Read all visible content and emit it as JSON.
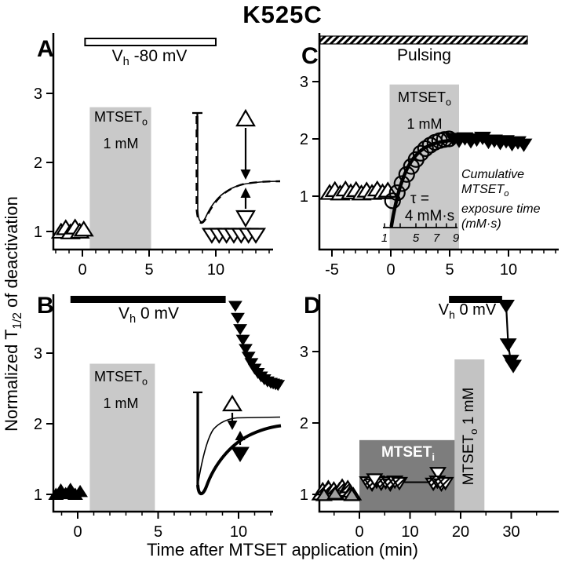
{
  "title": "K525C",
  "y_axis_label": {
    "pre": "Normalized T",
    "sub": "1/2",
    "post": " of deactivation"
  },
  "x_axis_label": "Time after MTSET application (min)",
  "colors": {
    "shade_light": "#c9c9c9",
    "shade_dark": "#7d7d7d",
    "shade_d_light": "#c3c3c3",
    "ink": "#000000"
  },
  "chart_data": [
    {
      "panel_label": "A",
      "type": "scatter",
      "xlim": [
        -2.2,
        14.3
      ],
      "ylim": [
        0.74,
        3.87
      ],
      "x_ticks": {
        "values": [
          0,
          5,
          10
        ],
        "labels": [
          "0",
          "5",
          "10"
        ]
      },
      "y_ticks": {
        "values": [
          1,
          2,
          3
        ],
        "labels": [
          "1",
          "2",
          "3"
        ]
      },
      "top_bar": {
        "style": "open",
        "x_range_min": [
          0.2,
          10
        ],
        "label": {
          "pre": "V",
          "sub": "h",
          "post": " -80 mV"
        }
      },
      "shade_boxes": [
        {
          "x0": 0.55,
          "x1": 5.15,
          "y_top": 2.8,
          "color": "light",
          "label_line1": {
            "pre": "MTSET",
            "sub": "o"
          },
          "label_line2": "1 mM"
        }
      ],
      "series": [
        {
          "name": "before MTSET, open up-triangles",
          "marker": "triangle-up",
          "fill": "open",
          "x": [
            -1.6,
            -1.25,
            -0.9,
            -0.55,
            -0.2,
            0.1
          ],
          "y": [
            1.0,
            1.05,
            0.99,
            1.06,
            1.0,
            1.03
          ]
        },
        {
          "name": "after MTSET washout, open down-triangles",
          "marker": "triangle-down",
          "fill": "open",
          "x": [
            9.7,
            10.25,
            10.8,
            11.35,
            11.9,
            12.45,
            13.0
          ],
          "y": [
            0.95,
            0.95,
            0.95,
            0.95,
            0.95,
            0.95,
            0.95
          ]
        }
      ]
    },
    {
      "panel_label": "B",
      "type": "scatter",
      "xlim": [
        -1.5,
        12.2
      ],
      "ylim": [
        0.76,
        3.84
      ],
      "x_ticks": {
        "values": [
          0,
          5,
          10
        ],
        "labels": [
          "0",
          "5",
          "10"
        ]
      },
      "y_ticks": {
        "values": [
          1,
          2,
          3
        ],
        "labels": [
          "1",
          "2",
          "3"
        ]
      },
      "top_bar": {
        "style": "solid",
        "x_range_min": [
          -0.45,
          9.2
        ],
        "label": {
          "pre": "V",
          "sub": "h",
          "post": " 0 mV"
        }
      },
      "shade_boxes": [
        {
          "x0": 0.75,
          "x1": 4.8,
          "y_top": 2.85,
          "color": "light",
          "label_line1": {
            "pre": "MTSET",
            "sub": "o"
          },
          "label_line2": "1 mM"
        }
      ],
      "series": [
        {
          "name": "before MTSET, filled up-triangles",
          "marker": "triangle-up",
          "fill": "filled",
          "x": [
            -1.35,
            -1.05,
            -0.75,
            -0.45,
            -0.15,
            0.15
          ],
          "y": [
            1.0,
            1.06,
            1.01,
            1.07,
            1.0,
            1.04
          ]
        },
        {
          "name": "after MTSET, filled down-triangles relaxing",
          "marker": "triangle-down",
          "fill": "filled",
          "x": [
            9.8,
            9.95,
            10.1,
            10.27,
            10.44,
            10.62,
            10.8,
            11.0,
            11.2,
            11.4,
            11.6,
            11.8,
            12.0,
            12.15,
            12.3,
            12.45
          ],
          "y": [
            3.67,
            3.5,
            3.34,
            3.19,
            3.06,
            2.95,
            2.86,
            2.78,
            2.72,
            2.67,
            2.63,
            2.6,
            2.58,
            2.57,
            2.56,
            2.55
          ]
        }
      ]
    },
    {
      "panel_label": "C",
      "type": "scatter",
      "xlim": [
        -6.1,
        14.3
      ],
      "ylim": [
        0.07,
        3.85
      ],
      "x_ticks": {
        "values": [
          -5,
          0,
          5,
          10
        ],
        "labels": [
          "-5",
          "0",
          "5",
          "10"
        ]
      },
      "y_ticks": {
        "values": [
          1,
          2,
          3
        ],
        "labels": [
          "1",
          "2",
          "3"
        ]
      },
      "top_bar": {
        "style": "hatched",
        "x_range_min": [
          -6,
          11.6
        ],
        "label": {
          "pre": "Pulsing",
          "sub": "",
          "post": ""
        }
      },
      "shade_boxes": [
        {
          "x0": -0.1,
          "x1": 5.8,
          "y_top": 2.95,
          "color": "light",
          "label_line1": {
            "pre": "MTSET",
            "sub": "o"
          },
          "label_line2": "1 mM"
        }
      ],
      "series": [
        {
          "name": "before MTSET, open up-triangles",
          "marker": "triangle-up",
          "fill": "open",
          "x": [
            -5.2,
            -4.75,
            -4.3,
            -3.85,
            -3.4,
            -2.95,
            -2.5,
            -2.05,
            -1.6,
            -1.15,
            -0.7,
            -0.25
          ],
          "y": [
            1.06,
            1.11,
            1.05,
            1.12,
            1.07,
            1.11,
            1.05,
            1.1,
            1.06,
            1.12,
            1.07,
            1.1
          ]
        },
        {
          "name": "during MTSET, open circles",
          "marker": "circle",
          "fill": "none",
          "x": [
            0.15,
            0.55,
            0.95,
            1.35,
            1.75,
            2.15,
            2.55,
            2.95,
            3.35,
            3.75,
            4.15,
            4.55,
            4.95
          ],
          "y": [
            0.92,
            1.06,
            1.22,
            1.38,
            1.52,
            1.64,
            1.75,
            1.83,
            1.89,
            1.94,
            1.97,
            1.99,
            2.0
          ]
        },
        {
          "name": "after MTSET, filled down-triangles",
          "marker": "triangle-down",
          "fill": "filled",
          "x": [
            5.3,
            5.8,
            6.3,
            6.8,
            7.3,
            7.8,
            8.3,
            8.8,
            9.3,
            9.8,
            10.3,
            10.8,
            11.3
          ],
          "y": [
            2.0,
            1.97,
            2.01,
            1.96,
            1.99,
            2.02,
            1.95,
            1.97,
            1.93,
            1.96,
            1.91,
            1.94,
            1.9
          ]
        }
      ],
      "fit": {
        "y_plateau": 2.0,
        "amplitude": 1.58,
        "tau_min": 1.25,
        "tau_label_line1": "τ =",
        "tau_label_line2": "4 mM·s"
      },
      "inner_axis": {
        "tick_labels": [
          "1",
          "5",
          "7",
          "9"
        ],
        "title_line1": {
          "pre": "Cumulative MTSET",
          "sub": "o"
        },
        "title_line2": "exposure time",
        "title_line3": "(mM·s)"
      }
    },
    {
      "panel_label": "D",
      "type": "scatter",
      "xlim": [
        -7.9,
        39.4
      ],
      "ylim": [
        0.76,
        3.81
      ],
      "x_ticks": {
        "values": [
          0,
          10,
          20,
          30
        ],
        "labels": [
          "0",
          "10",
          "20",
          "30"
        ]
      },
      "y_ticks": {
        "values": [
          1,
          2,
          3
        ],
        "labels": [
          "1",
          "2",
          "3"
        ]
      },
      "top_bar": {
        "style": "solid",
        "x_range_min": [
          17.7,
          28.2
        ],
        "label": {
          "pre": "V",
          "sub": "h",
          "post": " 0 mV"
        }
      },
      "shade_boxes": [
        {
          "x0": 0,
          "x1": 19,
          "y_top": 1.76,
          "color": "dark",
          "label_line1": {
            "pre": "MTSET",
            "sub": "i"
          },
          "label_line2": ""
        },
        {
          "x0": 18.8,
          "x1": 24.7,
          "y_top": 2.89,
          "color": "d_light",
          "rotated_label": true,
          "label_line1": {
            "pre": "MTSET",
            "sub": "o",
            "post": " 1 mM"
          },
          "label_line2": ""
        }
      ],
      "series": [
        {
          "name": "control, hatched up-triangles",
          "marker": "triangle-up",
          "fill": "hatch",
          "x": [
            -7.8,
            -7.25,
            -6.7,
            -6.15,
            -5.6,
            -5.05,
            -4.5,
            -3.95,
            -3.4,
            -2.85,
            -2.3,
            -1.75,
            -1.2
          ],
          "y": [
            1.0,
            1.07,
            1.01,
            1.1,
            1.03,
            1.08,
            1.0,
            1.07,
            1.12,
            1.05,
            1.1,
            1.04,
            1.0
          ]
        },
        {
          "name": "control, gray up-triangles",
          "marker": "triangle-up",
          "fill": "gray",
          "x": [
            -7.0,
            -4.8,
            -1.5
          ],
          "y": [
            0.99,
            1.01,
            0.99
          ]
        },
        {
          "name": "during internal MTSET, hatched down-triangles",
          "marker": "triangle-down",
          "fill": "hatch",
          "x": [
            1.6,
            2.5,
            3.4,
            4.3,
            5.2,
            6.1,
            7.0,
            7.9
          ],
          "y": [
            1.17,
            1.14,
            1.18,
            1.15,
            1.17,
            1.14,
            1.18,
            1.16
          ]
        },
        {
          "name": "during internal MTSET, open down-triangles",
          "marker": "triangle-down",
          "fill": "open",
          "x": [
            3.0,
            15.5
          ],
          "y": [
            1.21,
            1.3
          ]
        },
        {
          "name": "late internal MTSET, hatched down-triangles",
          "marker": "triangle-down",
          "fill": "hatch",
          "x": [
            14.6,
            15.4,
            16.2,
            17.0
          ],
          "y": [
            1.15,
            1.18,
            1.14,
            1.16
          ]
        },
        {
          "name": "after external MTSET, filled down-triangles",
          "marker": "triangle-down",
          "fill": "filled",
          "connect": true,
          "x": [
            29.0,
            29.4,
            29.9,
            30.4
          ],
          "y": [
            3.64,
            3.1,
            2.87,
            2.8
          ]
        }
      ]
    }
  ]
}
